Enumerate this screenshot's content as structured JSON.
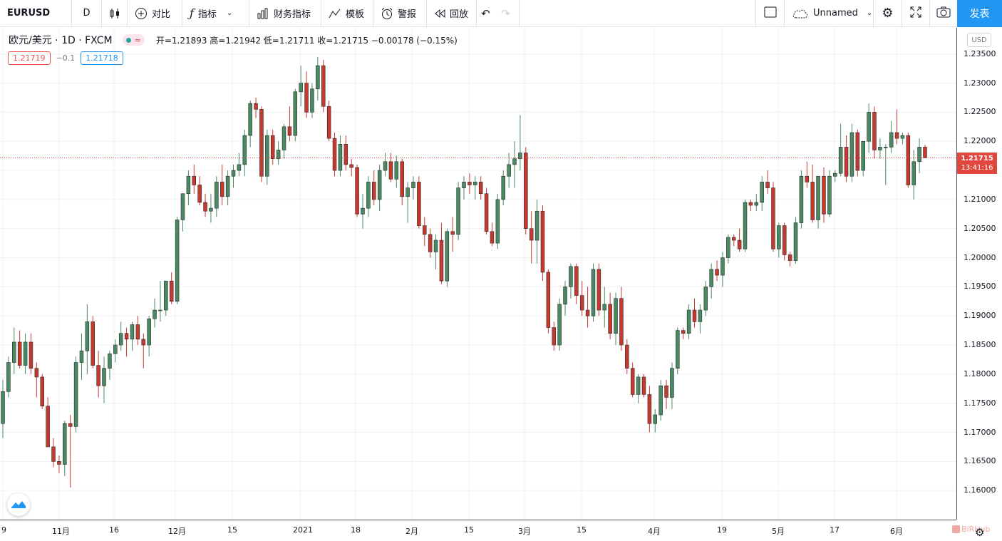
{
  "toolbar": {
    "symbol": "EURUSD",
    "interval": "D",
    "compare_label": "对比",
    "indicators_label": "指标",
    "financials_label": "财务指标",
    "templates_label": "模板",
    "alert_label": "警报",
    "replay_label": "回放",
    "layout_name": "Unnamed",
    "publish_label": "发表"
  },
  "legend": {
    "title": "欧元/美元 · 1D · FXCM",
    "badge_icon": "≈",
    "ohlc": "开=1.21893 高=1.21942 低=1.21711 收=1.21715 −0.00178 (−0.15%)",
    "bid": "1.21719",
    "spread": "−0.1",
    "ask": "1.21718"
  },
  "currency": "USD",
  "last_price": {
    "price": "1.21715",
    "countdown": "13:41:16",
    "color": "#e0483e"
  },
  "colors": {
    "up": "#4a8a63",
    "down": "#c7392e",
    "accent": "#2196f3"
  },
  "watermark": "BiRHub",
  "chart_data": {
    "type": "candlestick",
    "y_ticks": [
      "1.23500",
      "1.23000",
      "1.22500",
      "1.22000",
      "1.21500",
      "1.21000",
      "1.20500",
      "1.20000",
      "1.19500",
      "1.19000",
      "1.18500",
      "1.18000",
      "1.17500",
      "1.17000",
      "1.16500",
      "1.16000"
    ],
    "x_ticks": [
      "9",
      "11月",
      "16",
      "12月",
      "15",
      "2021",
      "18",
      "2月",
      "15",
      "3月",
      "15",
      "4月",
      "19",
      "5月",
      "17",
      "6月"
    ],
    "ylim": [
      1.155,
      1.2395
    ],
    "ohlc": [
      [
        1.1715,
        1.179,
        1.169,
        1.177
      ],
      [
        1.177,
        1.183,
        1.176,
        1.182
      ],
      [
        1.182,
        1.188,
        1.18,
        1.1855
      ],
      [
        1.1855,
        1.1875,
        1.181,
        1.1815
      ],
      [
        1.1815,
        1.187,
        1.18,
        1.1855
      ],
      [
        1.1855,
        1.187,
        1.18,
        1.181
      ],
      [
        1.181,
        1.182,
        1.176,
        1.1795
      ],
      [
        1.1795,
        1.18,
        1.174,
        1.1745
      ],
      [
        1.1745,
        1.176,
        1.168,
        1.1675
      ],
      [
        1.1675,
        1.169,
        1.164,
        1.165
      ],
      [
        1.165,
        1.166,
        1.163,
        1.1645
      ],
      [
        1.1645,
        1.172,
        1.1625,
        1.1715
      ],
      [
        1.1715,
        1.173,
        1.1605,
        1.171
      ],
      [
        1.171,
        1.183,
        1.17,
        1.182
      ],
      [
        1.182,
        1.187,
        1.179,
        1.184
      ],
      [
        1.184,
        1.192,
        1.18,
        1.189
      ],
      [
        1.189,
        1.19,
        1.181,
        1.1815
      ],
      [
        1.1815,
        1.184,
        1.176,
        1.178
      ],
      [
        1.178,
        1.183,
        1.175,
        1.181
      ],
      [
        1.181,
        1.184,
        1.179,
        1.1835
      ],
      [
        1.1835,
        1.186,
        1.182,
        1.185
      ],
      [
        1.185,
        1.189,
        1.184,
        1.187
      ],
      [
        1.187,
        1.188,
        1.183,
        1.186
      ],
      [
        1.186,
        1.189,
        1.184,
        1.1885
      ],
      [
        1.1885,
        1.19,
        1.185,
        1.186
      ],
      [
        1.186,
        1.187,
        1.181,
        1.185
      ],
      [
        1.185,
        1.19,
        1.183,
        1.1895
      ],
      [
        1.1895,
        1.193,
        1.188,
        1.191
      ],
      [
        1.191,
        1.196,
        1.189,
        1.191
      ],
      [
        1.191,
        1.196,
        1.19,
        1.196
      ],
      [
        1.196,
        1.1975,
        1.192,
        1.1925
      ],
      [
        1.1925,
        1.207,
        1.192,
        1.2065
      ],
      [
        1.2065,
        1.211,
        1.2045,
        1.211
      ],
      [
        1.211,
        1.215,
        1.209,
        1.214
      ],
      [
        1.214,
        1.216,
        1.211,
        1.2125
      ],
      [
        1.2125,
        1.214,
        1.209,
        1.2095
      ],
      [
        1.2095,
        1.211,
        1.207,
        1.208
      ],
      [
        1.208,
        1.211,
        1.206,
        1.2085
      ],
      [
        1.2085,
        1.214,
        1.207,
        1.213
      ],
      [
        1.213,
        1.216,
        1.209,
        1.2105
      ],
      [
        1.2105,
        1.215,
        1.209,
        1.214
      ],
      [
        1.214,
        1.216,
        1.212,
        1.215
      ],
      [
        1.215,
        1.218,
        1.214,
        1.216
      ],
      [
        1.216,
        1.222,
        1.214,
        1.221
      ],
      [
        1.221,
        1.227,
        1.219,
        1.2265
      ],
      [
        1.2265,
        1.2275,
        1.224,
        1.2255
      ],
      [
        1.2255,
        1.226,
        1.213,
        1.214
      ],
      [
        1.214,
        1.222,
        1.2125,
        1.221
      ],
      [
        1.221,
        1.222,
        1.216,
        1.217
      ],
      [
        1.217,
        1.22,
        1.216,
        1.2185
      ],
      [
        1.2185,
        1.223,
        1.217,
        1.2225
      ],
      [
        1.2225,
        1.226,
        1.22,
        1.221
      ],
      [
        1.221,
        1.229,
        1.22,
        1.2285
      ],
      [
        1.2285,
        1.233,
        1.226,
        1.23
      ],
      [
        1.23,
        1.232,
        1.224,
        1.225
      ],
      [
        1.225,
        1.23,
        1.224,
        1.229
      ],
      [
        1.229,
        1.2345,
        1.227,
        1.233
      ],
      [
        1.233,
        1.234,
        1.225,
        1.226
      ],
      [
        1.226,
        1.227,
        1.22,
        1.2205
      ],
      [
        1.2205,
        1.2215,
        1.214,
        1.215
      ],
      [
        1.215,
        1.221,
        1.214,
        1.2195
      ],
      [
        1.2195,
        1.221,
        1.215,
        1.216
      ],
      [
        1.216,
        1.217,
        1.214,
        1.2155
      ],
      [
        1.2155,
        1.216,
        1.207,
        1.2075
      ],
      [
        1.2075,
        1.211,
        1.205,
        1.2085
      ],
      [
        1.2085,
        1.214,
        1.207,
        1.213
      ],
      [
        1.213,
        1.215,
        1.209,
        1.21
      ],
      [
        1.21,
        1.216,
        1.208,
        1.215
      ],
      [
        1.215,
        1.218,
        1.214,
        1.2165
      ],
      [
        1.2165,
        1.218,
        1.213,
        1.2135
      ],
      [
        1.2135,
        1.2175,
        1.212,
        1.2165
      ],
      [
        1.2165,
        1.217,
        1.209,
        1.2105
      ],
      [
        1.2105,
        1.213,
        1.206,
        1.212
      ],
      [
        1.212,
        1.214,
        1.21,
        1.213
      ],
      [
        1.213,
        1.214,
        1.205,
        1.2055
      ],
      [
        1.2055,
        1.207,
        1.202,
        1.204
      ],
      [
        1.204,
        1.205,
        1.2,
        1.201
      ],
      [
        1.201,
        1.204,
        1.198,
        1.203
      ],
      [
        1.203,
        1.206,
        1.1955,
        1.196
      ],
      [
        1.196,
        1.205,
        1.195,
        1.2045
      ],
      [
        1.2045,
        1.207,
        1.201,
        1.204
      ],
      [
        1.204,
        1.213,
        1.203,
        1.212
      ],
      [
        1.212,
        1.214,
        1.21,
        1.213
      ],
      [
        1.213,
        1.2145,
        1.211,
        1.2125
      ],
      [
        1.2125,
        1.214,
        1.21,
        1.213
      ],
      [
        1.213,
        1.214,
        1.21,
        1.211
      ],
      [
        1.211,
        1.212,
        1.204,
        1.2045
      ],
      [
        1.2045,
        1.206,
        1.202,
        1.2025
      ],
      [
        1.2025,
        1.211,
        1.2015,
        1.21
      ],
      [
        1.21,
        1.215,
        1.209,
        1.214
      ],
      [
        1.214,
        1.218,
        1.212,
        1.216
      ],
      [
        1.216,
        1.22,
        1.212,
        1.217
      ],
      [
        1.217,
        1.2245,
        1.215,
        1.218
      ],
      [
        1.218,
        1.219,
        1.204,
        1.205
      ],
      [
        1.205,
        1.208,
        1.199,
        1.203
      ],
      [
        1.203,
        1.21,
        1.199,
        1.208
      ],
      [
        1.208,
        1.209,
        1.196,
        1.1975
      ],
      [
        1.1975,
        1.198,
        1.187,
        1.188
      ],
      [
        1.188,
        1.189,
        1.184,
        1.185
      ],
      [
        1.185,
        1.193,
        1.184,
        1.192
      ],
      [
        1.192,
        1.196,
        1.19,
        1.195
      ],
      [
        1.195,
        1.199,
        1.193,
        1.1985
      ],
      [
        1.1985,
        1.199,
        1.192,
        1.1935
      ],
      [
        1.1935,
        1.196,
        1.19,
        1.191
      ],
      [
        1.191,
        1.195,
        1.188,
        1.19
      ],
      [
        1.19,
        1.199,
        1.189,
        1.198
      ],
      [
        1.198,
        1.199,
        1.19,
        1.191
      ],
      [
        1.191,
        1.195,
        1.188,
        1.192
      ],
      [
        1.192,
        1.194,
        1.186,
        1.187
      ],
      [
        1.187,
        1.194,
        1.185,
        1.193
      ],
      [
        1.193,
        1.195,
        1.184,
        1.185
      ],
      [
        1.185,
        1.186,
        1.18,
        1.181
      ],
      [
        1.181,
        1.182,
        1.176,
        1.1765
      ],
      [
        1.1765,
        1.18,
        1.175,
        1.1795
      ],
      [
        1.1795,
        1.18,
        1.176,
        1.1765
      ],
      [
        1.1765,
        1.178,
        1.17,
        1.1715
      ],
      [
        1.1715,
        1.174,
        1.17,
        1.173
      ],
      [
        1.173,
        1.179,
        1.172,
        1.178
      ],
      [
        1.178,
        1.179,
        1.174,
        1.176
      ],
      [
        1.176,
        1.182,
        1.174,
        1.181
      ],
      [
        1.181,
        1.188,
        1.18,
        1.1875
      ],
      [
        1.1875,
        1.188,
        1.186,
        1.187
      ],
      [
        1.187,
        1.192,
        1.186,
        1.191
      ],
      [
        1.191,
        1.193,
        1.188,
        1.189
      ],
      [
        1.189,
        1.192,
        1.187,
        1.191
      ],
      [
        1.191,
        1.196,
        1.19,
        1.195
      ],
      [
        1.195,
        1.199,
        1.193,
        1.198
      ],
      [
        1.198,
        1.1995,
        1.196,
        1.197
      ],
      [
        1.197,
        1.201,
        1.195,
        1.2
      ],
      [
        1.2,
        1.204,
        1.199,
        1.2035
      ],
      [
        1.2035,
        1.204,
        1.202,
        1.203
      ],
      [
        1.203,
        1.205,
        1.201,
        1.2015
      ],
      [
        1.2015,
        1.21,
        1.201,
        1.2095
      ],
      [
        1.2095,
        1.21,
        1.208,
        1.209
      ],
      [
        1.209,
        1.211,
        1.208,
        1.2095
      ],
      [
        1.2095,
        1.214,
        1.208,
        1.213
      ],
      [
        1.213,
        1.215,
        1.211,
        1.212
      ],
      [
        1.212,
        1.213,
        1.201,
        1.2015
      ],
      [
        1.2015,
        1.206,
        1.2,
        1.2055
      ],
      [
        1.2055,
        1.206,
        1.1995,
        1.2005
      ],
      [
        1.2005,
        1.201,
        1.1985,
        1.1995
      ],
      [
        1.1995,
        1.207,
        1.199,
        1.206
      ],
      [
        1.206,
        1.215,
        1.205,
        1.214
      ],
      [
        1.214,
        1.2165,
        1.212,
        1.213
      ],
      [
        1.213,
        1.216,
        1.206,
        1.2065
      ],
      [
        1.2065,
        1.214,
        1.205,
        1.214
      ],
      [
        1.214,
        1.2155,
        1.206,
        1.2075
      ],
      [
        1.2075,
        1.215,
        1.207,
        1.214
      ],
      [
        1.214,
        1.215,
        1.213,
        1.2145
      ],
      [
        1.2145,
        1.223,
        1.214,
        1.219
      ],
      [
        1.219,
        1.221,
        1.213,
        1.214
      ],
      [
        1.214,
        1.223,
        1.213,
        1.2215
      ],
      [
        1.2215,
        1.222,
        1.214,
        1.215
      ],
      [
        1.215,
        1.22,
        1.214,
        1.22
      ],
      [
        1.22,
        1.2265,
        1.218,
        1.225
      ],
      [
        1.225,
        1.226,
        1.217,
        1.2185
      ],
      [
        1.2185,
        1.2205,
        1.217,
        1.219
      ],
      [
        1.219,
        1.2195,
        1.2125,
        1.219
      ],
      [
        1.219,
        1.2235,
        1.218,
        1.2215
      ],
      [
        1.2215,
        1.2255,
        1.2195,
        1.2205
      ],
      [
        1.2205,
        1.2215,
        1.2195,
        1.221
      ],
      [
        1.221,
        1.2215,
        1.212,
        1.2125
      ],
      [
        1.2125,
        1.2185,
        1.21,
        1.2165
      ],
      [
        1.2165,
        1.2205,
        1.2145,
        1.219
      ],
      [
        1.219,
        1.2194,
        1.2171,
        1.21715
      ]
    ]
  }
}
